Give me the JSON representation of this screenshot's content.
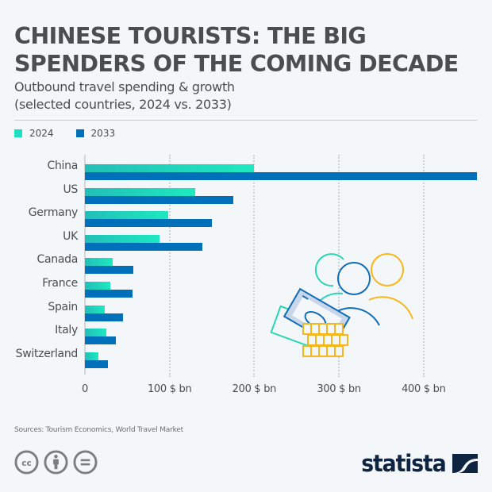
{
  "header": {
    "title": "CHINESE TOURISTS: THE BIG SPENDERS OF THE COMING DECADE",
    "subtitle_line1": "Outbound travel spending & growth",
    "subtitle_line2": "(selected countries, 2024 vs. 2033)"
  },
  "legend": {
    "items": [
      {
        "label": "2024",
        "color": "#1de0c0"
      },
      {
        "label": "2033",
        "color": "#0070bb"
      }
    ]
  },
  "x_axis": {
    "ticks": [
      "0",
      "100 $ bn",
      "200 $ bn",
      "300 $ bn",
      "400 $ bn"
    ]
  },
  "footer": {
    "source": "Sources: Tourism Economics, World Travel Market",
    "license_icons": [
      "cc-icon",
      "attribution-icon",
      "no-derivatives-icon"
    ],
    "brand": "statista"
  },
  "colors": {
    "series_2024_start": "#22bfb8",
    "series_2024_end": "#1de9c0",
    "series_2033": "#0070bb",
    "background": "#f4f7fa",
    "title": "#4a4e4f",
    "brand": "#0f2440",
    "illustration_teal": "#2ad6b4",
    "illustration_blue": "#0f6cb6",
    "illustration_yellow": "#f7b619"
  },
  "chart_data": {
    "type": "bar",
    "orientation": "horizontal",
    "title": "CHINESE TOURISTS: THE BIG SPENDERS OF THE COMING DECADE",
    "subtitle": "Outbound travel spending & growth (selected countries, 2024 vs. 2033)",
    "xlabel": "",
    "ylabel": "",
    "unit": "$ bn",
    "xlim": [
      0,
      465
    ],
    "x_ticks": [
      0,
      100,
      200,
      300,
      400
    ],
    "x_tick_labels": [
      "0",
      "100 $ bn",
      "200 $ bn",
      "300 $ bn",
      "400 $ bn"
    ],
    "grid": "vertical dotted",
    "legend_position": "top-left",
    "categories": [
      "China",
      "US",
      "Germany",
      "UK",
      "Canada",
      "France",
      "Spain",
      "Italy",
      "Switzerland"
    ],
    "series": [
      {
        "name": "2024",
        "values": [
          200,
          130,
          98,
          88,
          33,
          30,
          23,
          25,
          16
        ]
      },
      {
        "name": "2033",
        "values": [
          463,
          175,
          150,
          139,
          57,
          56,
          45,
          37,
          27
        ]
      }
    ],
    "source": "Sources: Tourism Economics, World Travel Market"
  }
}
